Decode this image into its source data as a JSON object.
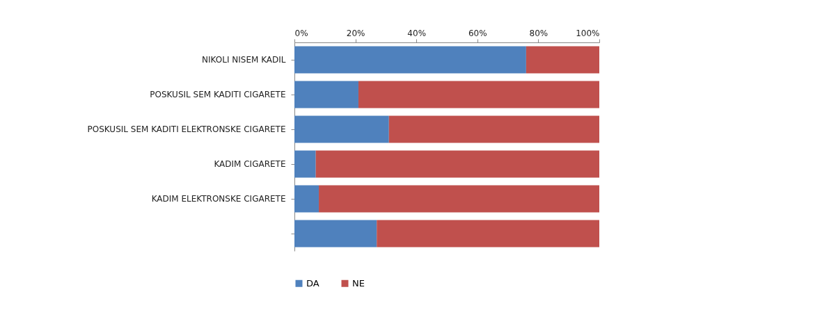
{
  "chart_data": {
    "type": "bar",
    "orientation": "horizontal",
    "stacked": true,
    "categories": [
      "NIKOLI NISEM KADIL",
      "POSKUSIL SEM KADITI CIGARETE",
      "POSKUSIL SEM KADITI ELEKTRONSKE CIGARETE",
      "KADIM CIGARETE",
      "KADIM ELEKTRONSKE CIGARETE",
      null
    ],
    "series": [
      {
        "name": "DA",
        "color": "#4f81bd",
        "values": [
          76,
          21,
          31,
          7,
          8,
          27
        ]
      },
      {
        "name": "NE",
        "color": "#c0504d",
        "values": [
          24,
          79,
          69,
          93,
          92,
          73
        ]
      }
    ],
    "xlim": [
      0,
      100
    ],
    "xticks": [
      {
        "value": 0,
        "label": "0%"
      },
      {
        "value": 20,
        "label": "20%"
      },
      {
        "value": 40,
        "label": "40%"
      },
      {
        "value": 60,
        "label": "60%"
      },
      {
        "value": 80,
        "label": "80%"
      },
      {
        "value": 100,
        "label": "100%"
      }
    ],
    "grid": false,
    "legend": "bottom"
  }
}
